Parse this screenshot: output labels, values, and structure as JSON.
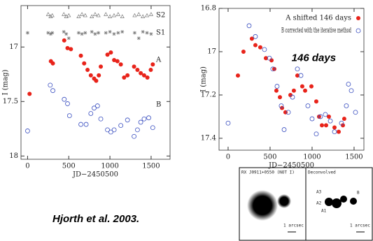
{
  "chart_data": [
    {
      "type": "scatter",
      "xlabel": "JD−2450500",
      "ylabel": "I (mag)",
      "xlim": [
        -80,
        1730
      ],
      "ylim": [
        16.62,
        18.03
      ],
      "y_inverted": true,
      "xticks": [
        0,
        500,
        1000,
        1500
      ],
      "yticks": [
        17,
        17.5,
        18
      ],
      "annotations": [
        {
          "text": "S2",
          "x": 1560,
          "y": 16.71
        },
        {
          "text": "S1",
          "x": 1560,
          "y": 16.87
        },
        {
          "text": "A",
          "x": 1560,
          "y": 17.12
        },
        {
          "text": "B",
          "x": 1560,
          "y": 17.53
        }
      ],
      "series": [
        {
          "marker": "triangle",
          "color": "#777777",
          "x": [
            250,
            280,
            300,
            440,
            470,
            500,
            620,
            660,
            700,
            780,
            820,
            860,
            950,
            1000,
            1050,
            1100,
            1150,
            1300,
            1350,
            1400,
            1450,
            1500
          ],
          "values": [
            16.7,
            16.72,
            16.71,
            16.7,
            16.72,
            16.71,
            16.72,
            16.7,
            16.71,
            16.72,
            16.7,
            16.71,
            16.7,
            16.72,
            16.71,
            16.7,
            16.72,
            16.71,
            16.7,
            16.72,
            16.71,
            16.7
          ]
        },
        {
          "marker": "asterisk",
          "color": "#777777",
          "x": [
            0,
            250,
            280,
            300,
            440,
            470,
            500,
            620,
            660,
            700,
            780,
            820,
            860,
            950,
            1000,
            1050,
            1100,
            1150,
            1300,
            1350,
            1400,
            1450,
            1500
          ],
          "values": [
            16.87,
            16.87,
            16.88,
            16.87,
            16.86,
            16.88,
            16.92,
            16.87,
            16.88,
            16.87,
            16.86,
            16.88,
            16.87,
            16.87,
            16.86,
            16.88,
            16.87,
            16.86,
            16.87,
            16.92,
            16.86,
            16.87,
            16.88
          ]
        },
        {
          "marker": "circle-filled",
          "color": "#e8231a",
          "x": [
            24,
            283,
            307,
            445,
            485,
            526,
            647,
            687,
            728,
            768,
            808,
            833,
            865,
            889,
            970,
            1011,
            1051,
            1091,
            1132,
            1172,
            1213,
            1293,
            1334,
            1374,
            1415,
            1455,
            1496,
            1520
          ],
          "values": [
            17.43,
            17.13,
            17.15,
            16.94,
            17.01,
            17.02,
            17.08,
            17.15,
            17.21,
            17.26,
            17.29,
            17.31,
            17.26,
            17.18,
            17.07,
            17.05,
            17.12,
            17.13,
            17.16,
            17.28,
            17.26,
            17.18,
            17.21,
            17.24,
            17.26,
            17.28,
            17.21,
            17.16
          ]
        },
        {
          "marker": "circle-open",
          "color": "#3a4fc0",
          "x": [
            0,
            275,
            307,
            445,
            485,
            509,
            647,
            711,
            768,
            808,
            849,
            889,
            970,
            1011,
            1051,
            1132,
            1213,
            1293,
            1334,
            1374,
            1415,
            1471,
            1520
          ],
          "values": [
            17.77,
            17.35,
            17.4,
            17.48,
            17.52,
            17.63,
            17.71,
            17.71,
            17.61,
            17.56,
            17.54,
            17.66,
            17.76,
            17.78,
            17.76,
            17.72,
            17.67,
            17.82,
            17.76,
            17.69,
            17.66,
            17.65,
            17.74
          ]
        }
      ]
    },
    {
      "type": "scatter",
      "xlabel": "JD−2450500",
      "ylabel": "I (mag)",
      "xlim": [
        -108,
        1617
      ],
      "ylim": [
        16.8,
        17.455
      ],
      "y_inverted": true,
      "xticks": [
        0,
        500,
        1000,
        1500
      ],
      "yticks": [
        16.8,
        17,
        17.2,
        17.4
      ],
      "legend": "upper right",
      "annotations": [
        {
          "text": "146 days",
          "x": 1020,
          "y": 17.03
        }
      ],
      "series": [
        {
          "name": "A shifted 146 days",
          "marker": "circle-filled",
          "color": "#e8231a",
          "x": [
            117,
            183,
            283,
            325,
            383,
            450,
            517,
            550,
            575,
            617,
            642,
            683,
            742,
            783,
            825,
            883,
            917,
            992,
            1050,
            1083,
            1117,
            1167,
            1200,
            1267,
            1317,
            1367,
            1383
          ],
          "values": [
            17.11,
            17.0,
            16.94,
            16.97,
            16.98,
            17.03,
            17.04,
            17.08,
            17.18,
            17.21,
            17.26,
            17.28,
            17.2,
            17.18,
            17.11,
            17.16,
            17.18,
            17.16,
            17.23,
            17.3,
            17.34,
            17.34,
            17.3,
            17.35,
            17.37,
            17.34,
            17.31
          ]
        },
        {
          "name": "B corrected with the iterative method",
          "marker": "circle-open",
          "color": "#3a4fc0",
          "x": [
            0,
            250,
            325,
            433,
            492,
            533,
            583,
            633,
            667,
            717,
            767,
            825,
            867,
            950,
            1000,
            1050,
            1100,
            1158,
            1217,
            1267,
            1350,
            1408,
            1433,
            1467,
            1517
          ],
          "values": [
            17.33,
            16.88,
            16.93,
            16.99,
            17.03,
            17.08,
            17.16,
            17.25,
            17.36,
            17.28,
            17.21,
            17.08,
            17.11,
            17.25,
            17.31,
            17.38,
            17.3,
            17.29,
            17.32,
            17.37,
            17.33,
            17.25,
            17.15,
            17.18,
            17.28
          ]
        }
      ]
    }
  ],
  "caption": "Hjorth et al. 2003.",
  "images": {
    "left": {
      "title": "RX J0911+0550 (NOT I)",
      "scale": "1 arcsec"
    },
    "right": {
      "title": "Deconvolved",
      "scale": "1 arcsec",
      "labels": [
        "A3",
        "B",
        "A2",
        "A1"
      ]
    }
  }
}
